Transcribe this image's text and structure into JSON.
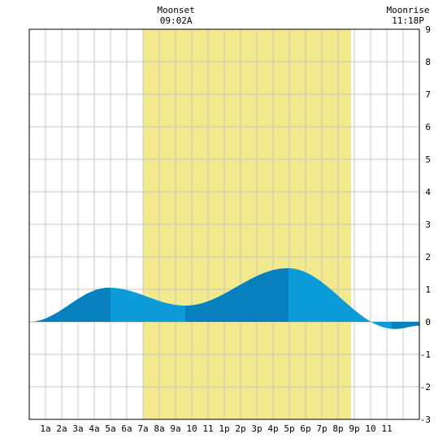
{
  "chart_data": {
    "type": "area",
    "title": "",
    "xlabel": "",
    "ylabel": "",
    "x_tick_labels": [
      "1a",
      "2a",
      "3a",
      "4a",
      "5a",
      "6a",
      "7a",
      "8a",
      "9a",
      "10",
      "11",
      "1p",
      "2p",
      "3p",
      "4p",
      "5p",
      "6p",
      "7p",
      "8p",
      "9p",
      "10",
      "11"
    ],
    "y_ticks": [
      9,
      8,
      7,
      6,
      5,
      4,
      3,
      2,
      1,
      0,
      -1,
      -2,
      -3
    ],
    "ylim": [
      -3,
      9
    ],
    "xlim_hours": [
      0,
      24
    ],
    "grid": true,
    "daylight_hours": [
      7.0,
      19.8
    ],
    "header_events": [
      {
        "label": "Moonset",
        "time": "09:02A",
        "hour": 9.03
      },
      {
        "label": "Moonrise",
        "time": "11:18P",
        "hour": 23.3
      }
    ],
    "tide_extrema": [
      {
        "hour": 0.0,
        "height": 0.0
      },
      {
        "hour": 4.9,
        "height": 1.05
      },
      {
        "hour": 9.6,
        "height": 0.5
      },
      {
        "hour": 15.9,
        "height": 1.65
      },
      {
        "hour": 22.5,
        "height": -0.22
      },
      {
        "hour": 24.0,
        "height": -0.12
      }
    ],
    "tide_band_breaks_hours": [
      0,
      5.0,
      9.6,
      15.95,
      22.3,
      24.0
    ],
    "colors": {
      "daylight": "#f2e98c",
      "tide_light": "#0b9bd9",
      "tide_dark": "#0880bd",
      "grid": "#c8c8c8",
      "border": "#000000"
    }
  }
}
